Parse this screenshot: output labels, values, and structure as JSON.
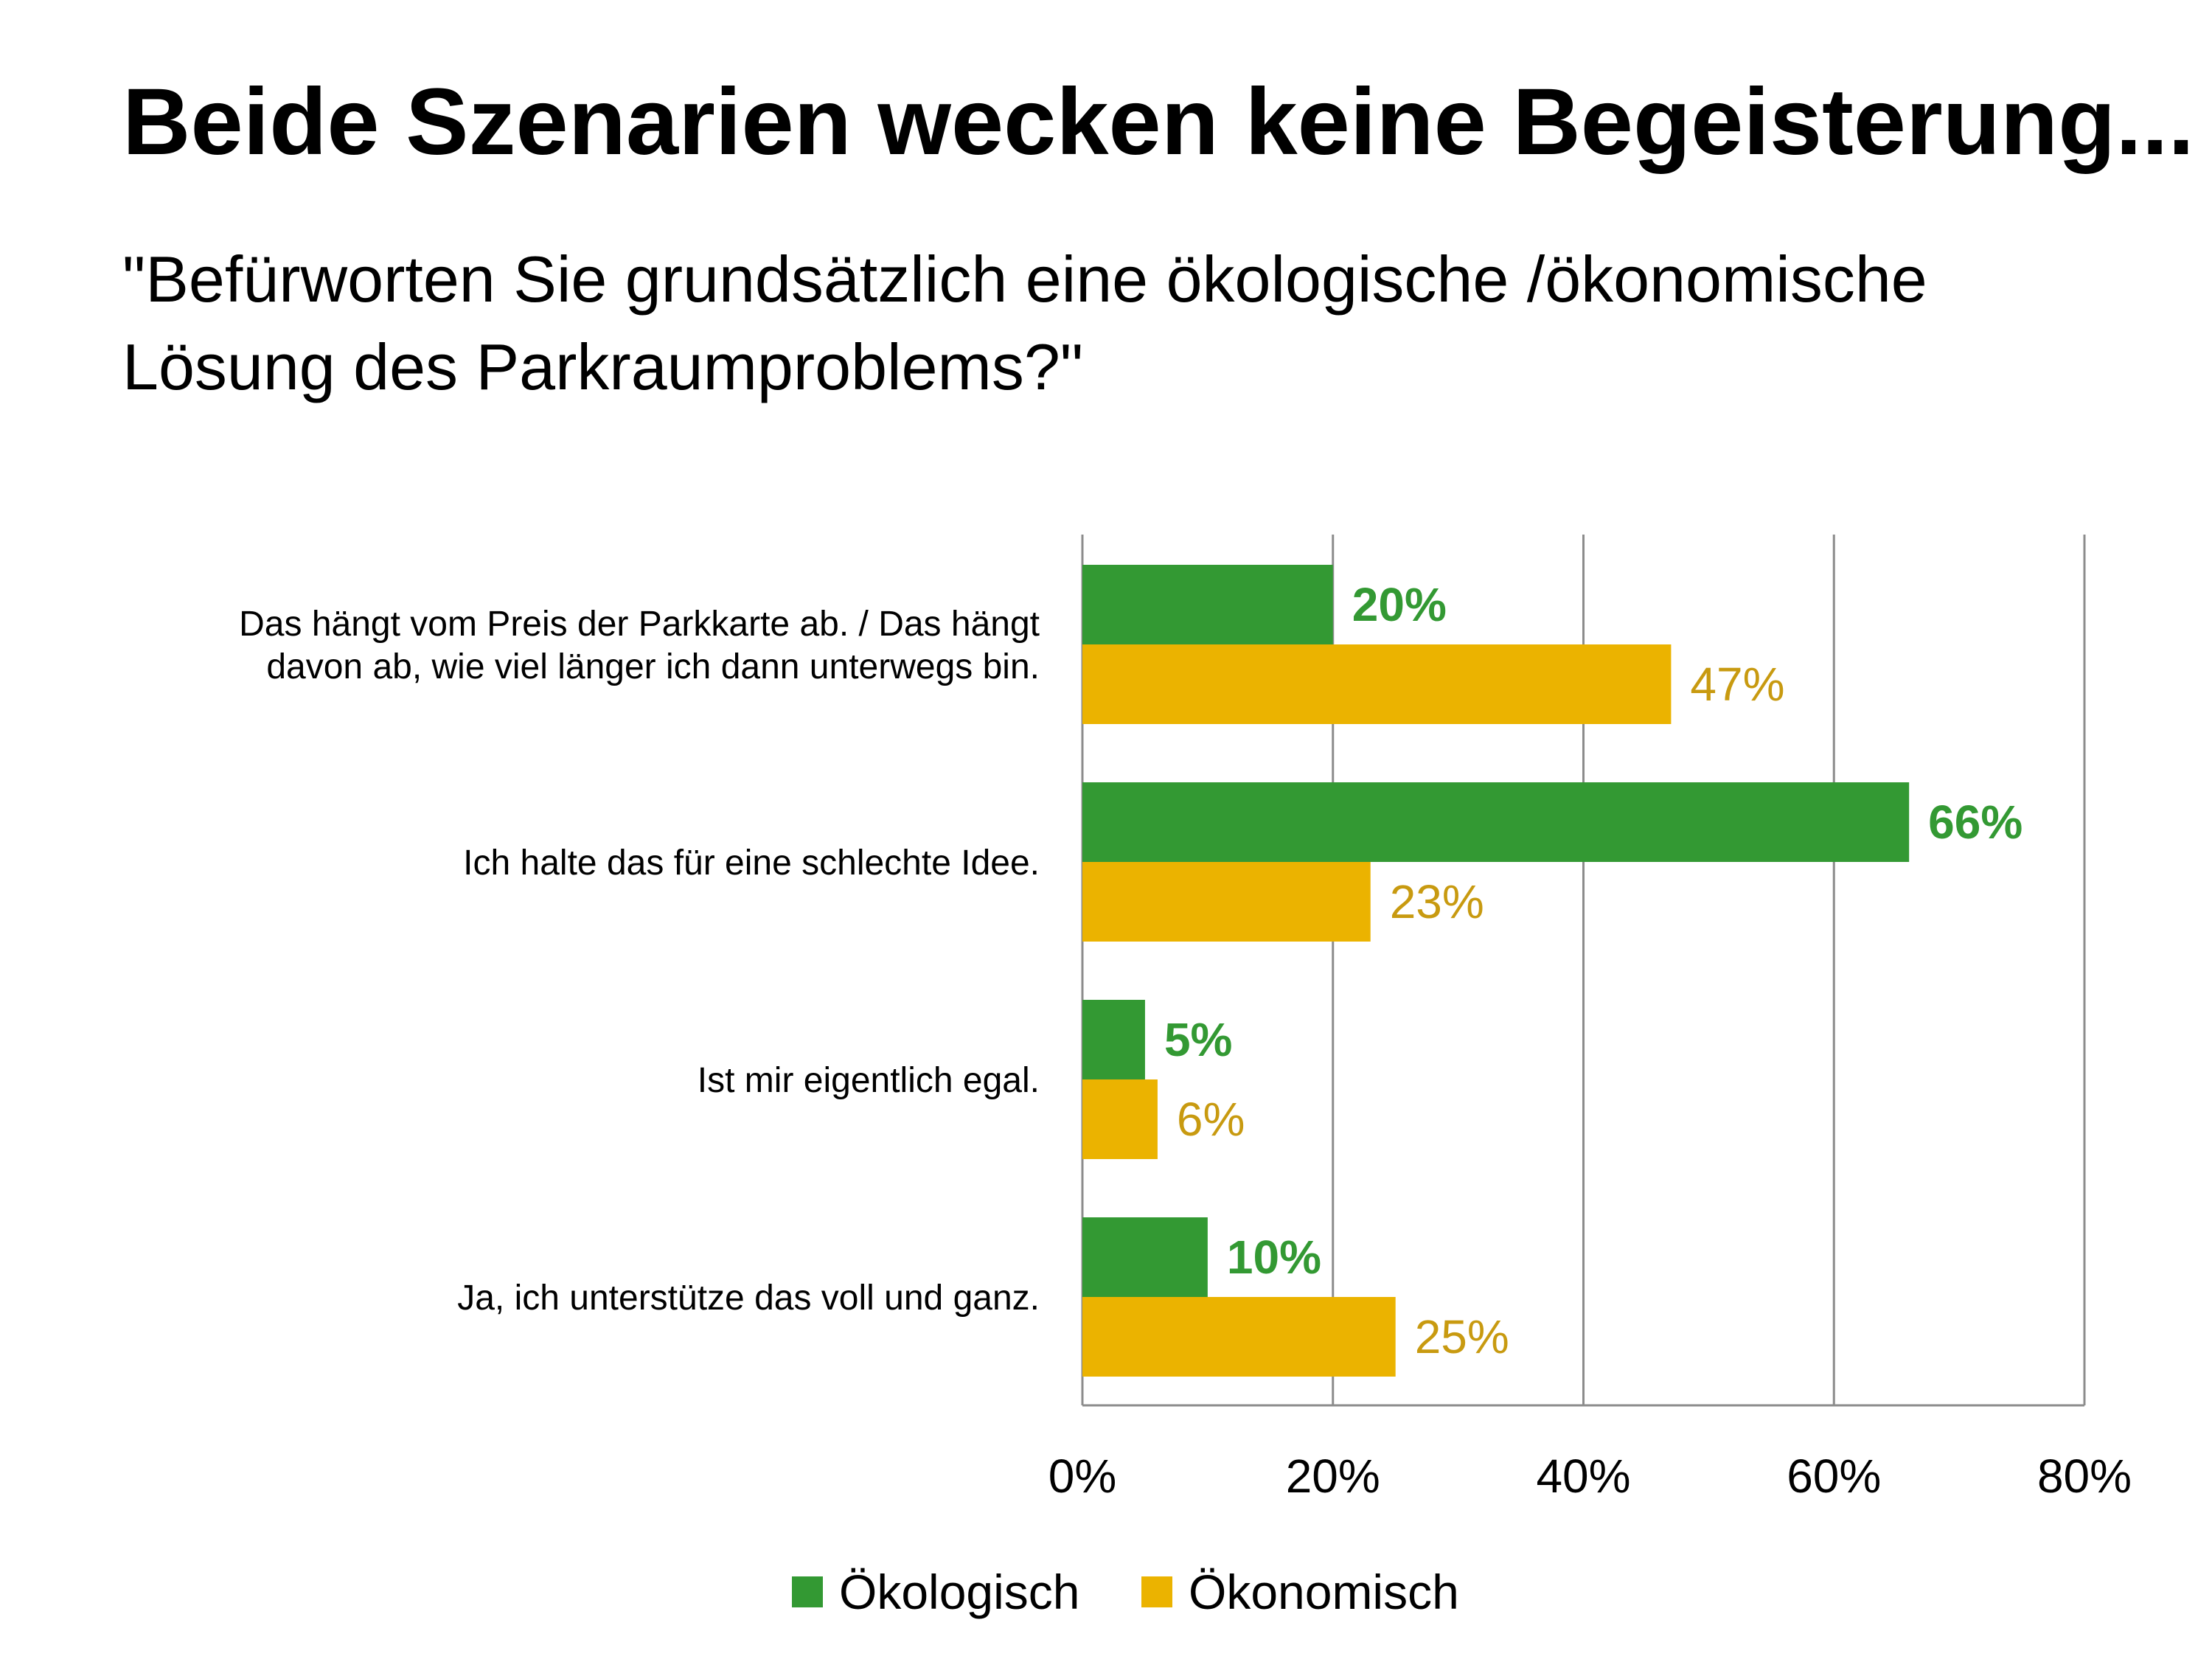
{
  "title": "Beide Szenarien wecken keine Begeisterung...",
  "subtitle_line1": "\"Befürworten Sie grundsätzlich eine ökologische /ökonomische",
  "subtitle_line2": "Lösung des Parkraumproblems?\"",
  "colors": {
    "oekologisch": "#339933",
    "oekonomisch": "#EBB300",
    "oekonomisch_label": "#C89A10",
    "grid": "#8C8C8C"
  },
  "chart_data": {
    "type": "bar",
    "orientation": "horizontal",
    "categories": [
      [
        "Das hängt vom Preis der Parkkarte ab. / Das hängt",
        "davon ab, wie viel länger ich dann unterwegs bin."
      ],
      [
        "Ich halte das für eine schlechte Idee."
      ],
      [
        "Ist mir eigentlich egal."
      ],
      [
        "Ja, ich unterstütze das voll und ganz."
      ]
    ],
    "series": [
      {
        "name": "Ökologisch",
        "values": [
          20,
          66,
          5,
          10
        ],
        "labels": [
          "20%",
          "66%",
          "5%",
          "10%"
        ]
      },
      {
        "name": "Ökonomisch",
        "values": [
          47,
          23,
          6,
          25
        ],
        "labels": [
          "47%",
          "23%",
          "6%",
          "25%"
        ]
      }
    ],
    "xlim": [
      0,
      80
    ],
    "xticks": [
      "0%",
      "20%",
      "40%",
      "60%",
      "80%"
    ],
    "grid": true,
    "legend_position": "bottom"
  }
}
